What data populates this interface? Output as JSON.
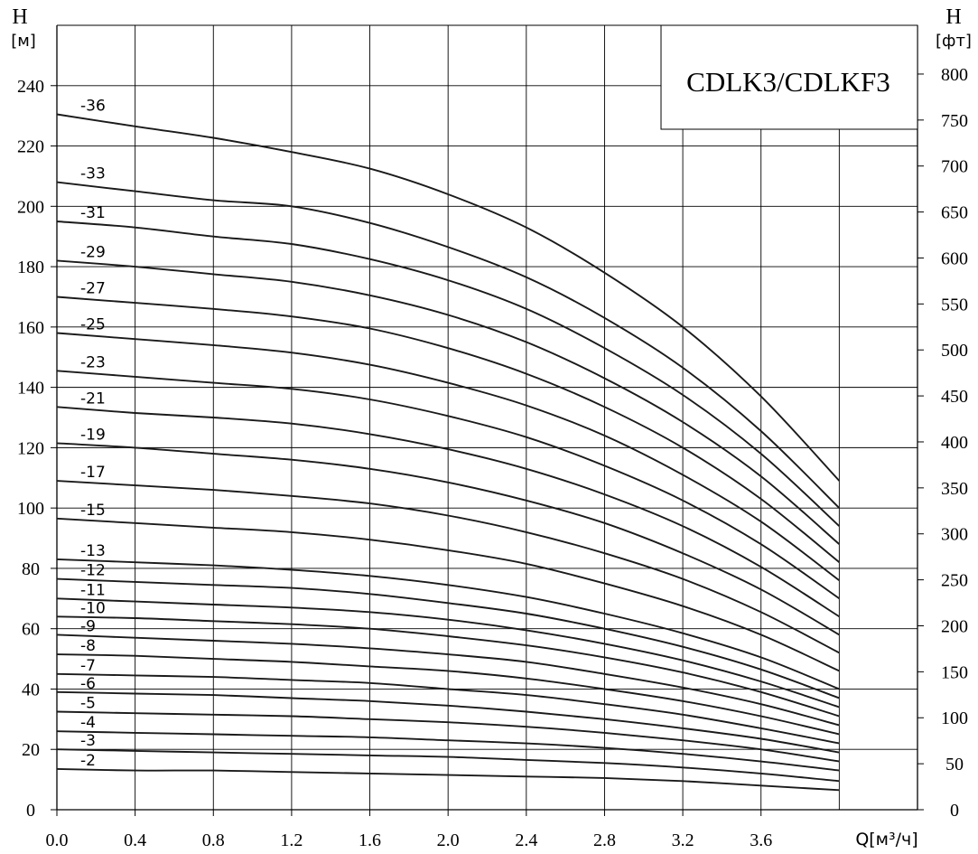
{
  "chart_data": {
    "type": "line",
    "title": "CDLK3/CDLKF3",
    "y_label_left": {
      "symbol": "H",
      "unit": "[м]"
    },
    "y_label_right": {
      "symbol": "H",
      "unit": "[фт]"
    },
    "x_label": "Q[м³/ч]",
    "x_ticks": [
      "0.0",
      "0.4",
      "0.8",
      "1.2",
      "1.6",
      "2.0",
      "2.4",
      "2.8",
      "3.2",
      "3.6"
    ],
    "y_ticks_left": [
      "0",
      "20",
      "40",
      "60",
      "80",
      "100",
      "120",
      "140",
      "160",
      "180",
      "200",
      "220",
      "240"
    ],
    "y_ticks_right": [
      "0",
      "50",
      "100",
      "150",
      "200",
      "250",
      "300",
      "350",
      "400",
      "450",
      "500",
      "550",
      "600",
      "650",
      "700",
      "750",
      "800"
    ],
    "xlim": [
      0,
      4.4
    ],
    "ylim": [
      0,
      260
    ],
    "grid": true,
    "x": [
      0,
      0.4,
      0.8,
      1.2,
      1.6,
      2.0,
      2.4,
      2.8,
      3.2,
      3.6,
      4.0
    ],
    "series": [
      {
        "name": "-36",
        "values": [
          230.5,
          226.5,
          222.7,
          218.0,
          212.5,
          204.0,
          193.0,
          178.0,
          160.0,
          137.0,
          109.0
        ]
      },
      {
        "name": "-33",
        "values": [
          208.0,
          205.0,
          202.0,
          200.0,
          194.5,
          186.5,
          176.5,
          163.0,
          146.5,
          125.5,
          100.0
        ]
      },
      {
        "name": "-31",
        "values": [
          195.0,
          193.0,
          190.0,
          187.5,
          182.5,
          175.5,
          166.0,
          153.0,
          137.5,
          118.0,
          94.0
        ]
      },
      {
        "name": "-29",
        "values": [
          182.0,
          180.0,
          177.5,
          175.0,
          170.5,
          164.0,
          155.0,
          143.0,
          128.5,
          110.5,
          88.0
        ]
      },
      {
        "name": "-27",
        "values": [
          170.0,
          168.0,
          166.0,
          163.5,
          159.5,
          153.0,
          144.5,
          133.5,
          120.0,
          103.0,
          82.0
        ]
      },
      {
        "name": "-25",
        "values": [
          158.0,
          156.0,
          154.0,
          151.5,
          147.5,
          141.5,
          134.0,
          124.0,
          111.0,
          95.5,
          76.0
        ]
      },
      {
        "name": "-23",
        "values": [
          145.5,
          143.5,
          141.5,
          139.5,
          136.0,
          130.5,
          123.5,
          114.0,
          102.5,
          88.0,
          70.0
        ]
      },
      {
        "name": "-21",
        "values": [
          133.5,
          131.5,
          130.0,
          128.0,
          124.5,
          119.5,
          113.0,
          104.5,
          94.0,
          80.5,
          64.0
        ]
      },
      {
        "name": "-19",
        "values": [
          121.5,
          120.0,
          118.0,
          116.0,
          113.0,
          108.5,
          102.5,
          95.0,
          85.0,
          73.0,
          58.0
        ]
      },
      {
        "name": "-17",
        "values": [
          109.0,
          107.5,
          106.0,
          104.0,
          101.5,
          97.5,
          92.0,
          85.0,
          76.5,
          65.5,
          52.0
        ]
      },
      {
        "name": "-15",
        "values": [
          96.5,
          95.0,
          93.5,
          92.0,
          89.5,
          86.0,
          81.5,
          75.0,
          67.5,
          58.0,
          46.0
        ]
      },
      {
        "name": "-13",
        "values": [
          83.0,
          82.0,
          81.0,
          79.5,
          77.5,
          74.5,
          70.5,
          65.0,
          58.5,
          50.5,
          40.0
        ]
      },
      {
        "name": "-12",
        "values": [
          76.5,
          75.5,
          74.5,
          73.5,
          71.5,
          68.5,
          65.0,
          60.0,
          54.0,
          46.5,
          37.0
        ]
      },
      {
        "name": "-11",
        "values": [
          70.0,
          69.0,
          68.0,
          67.0,
          65.5,
          63.0,
          59.5,
          55.0,
          49.5,
          42.5,
          34.0
        ]
      },
      {
        "name": "-10",
        "values": [
          64.0,
          63.5,
          62.5,
          61.5,
          60.0,
          57.5,
          54.5,
          50.5,
          45.5,
          39.0,
          31.0
        ]
      },
      {
        "name": "-9",
        "values": [
          58.0,
          57.0,
          56.0,
          55.0,
          53.5,
          51.5,
          49.0,
          45.0,
          40.5,
          35.0,
          28.0
        ]
      },
      {
        "name": "-8",
        "values": [
          51.5,
          51.0,
          50.0,
          49.0,
          47.5,
          46.0,
          43.5,
          40.0,
          36.0,
          31.0,
          25.0
        ]
      },
      {
        "name": "-7",
        "values": [
          45.0,
          44.5,
          44.0,
          43.0,
          42.0,
          40.0,
          38.0,
          35.0,
          31.5,
          27.0,
          22.0
        ]
      },
      {
        "name": "-6",
        "values": [
          39.0,
          38.5,
          38.0,
          37.0,
          36.0,
          34.5,
          32.5,
          30.0,
          27.0,
          23.5,
          19.0
        ]
      },
      {
        "name": "-5",
        "values": [
          32.5,
          32.0,
          31.5,
          31.0,
          30.0,
          29.0,
          27.5,
          25.5,
          23.0,
          20.0,
          16.0
        ]
      },
      {
        "name": "-4",
        "values": [
          26.0,
          25.5,
          25.0,
          24.5,
          24.0,
          23.0,
          22.0,
          20.5,
          18.5,
          16.0,
          13.0
        ]
      },
      {
        "name": "-3",
        "values": [
          20.0,
          19.5,
          19.0,
          18.5,
          18.0,
          17.5,
          16.5,
          15.5,
          14.0,
          12.0,
          9.5
        ]
      },
      {
        "name": "-2",
        "values": [
          13.5,
          13.0,
          13.0,
          12.5,
          12.0,
          11.5,
          11.0,
          10.5,
          9.5,
          8.0,
          6.5
        ]
      }
    ]
  }
}
